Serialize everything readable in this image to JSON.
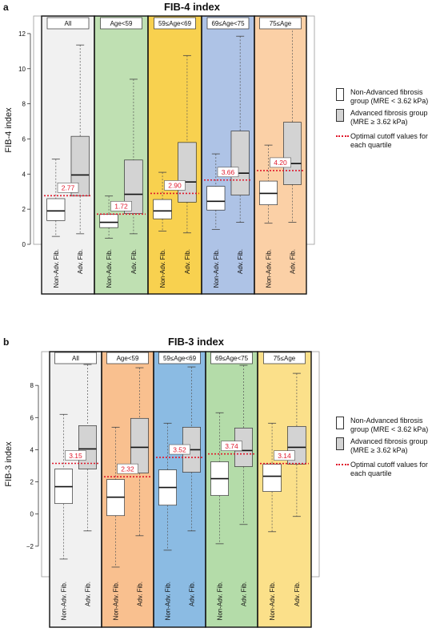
{
  "chart_data": [
    {
      "panel_label": "a",
      "type": "box",
      "title": "FIB-4 index",
      "ylabel": "FIB-4 index",
      "ylim": [
        0,
        13
      ],
      "yticks": [
        "0",
        "2",
        "4",
        "6",
        "8",
        "10",
        "12"
      ],
      "ytick_values": [
        0,
        2,
        4,
        6,
        8,
        10,
        12
      ],
      "box_labels": [
        "Non-Adv. Fib.",
        "Adv. Fib."
      ],
      "groups": [
        {
          "label": "All",
          "color": "#f1f1f1",
          "cutoff": 2.77,
          "cutoff_label": "2.77",
          "boxes": [
            {
              "min": 0.45,
              "q1": 1.35,
              "median": 1.9,
              "q3": 2.6,
              "max": 4.85
            },
            {
              "min": 0.6,
              "q1": 2.75,
              "median": 3.95,
              "q3": 6.15,
              "max": 11.35
            }
          ]
        },
        {
          "label": "Age<59",
          "color": "#bfe0b2",
          "cutoff": 1.72,
          "cutoff_label": "1.72",
          "boxes": [
            {
              "min": 0.35,
              "q1": 0.95,
              "median": 1.25,
              "q3": 1.7,
              "max": 2.75
            },
            {
              "min": 0.6,
              "q1": 1.75,
              "median": 2.85,
              "q3": 4.8,
              "max": 9.4
            }
          ]
        },
        {
          "label": "59≤Age<69",
          "color": "#f8d14f",
          "cutoff": 2.9,
          "cutoff_label": "2.90",
          "boxes": [
            {
              "min": 0.75,
              "q1": 1.45,
              "median": 1.9,
              "q3": 2.55,
              "max": 4.1
            },
            {
              "min": 0.65,
              "q1": 2.4,
              "median": 3.55,
              "q3": 5.8,
              "max": 10.75
            }
          ]
        },
        {
          "label": "69≤Age<75",
          "color": "#aec3e6",
          "cutoff": 3.66,
          "cutoff_label": "3.66",
          "boxes": [
            {
              "min": 0.85,
              "q1": 1.95,
              "median": 2.45,
              "q3": 3.3,
              "max": 5.15
            },
            {
              "min": 1.25,
              "q1": 2.8,
              "median": 4.05,
              "q3": 6.45,
              "max": 11.85
            }
          ]
        },
        {
          "label": "75≤Age",
          "color": "#fbd0a6",
          "cutoff": 4.2,
          "cutoff_label": "4.20",
          "boxes": [
            {
              "min": 1.2,
              "q1": 2.25,
              "median": 2.9,
              "q3": 3.6,
              "max": 5.65
            },
            {
              "min": 1.25,
              "q1": 3.4,
              "median": 4.6,
              "q3": 6.95,
              "max": 12.35
            }
          ]
        }
      ]
    },
    {
      "panel_label": "b",
      "type": "box",
      "title": "FIB-3 index",
      "ylabel": "FIB-3 index",
      "ylim": [
        -3.9,
        10.1
      ],
      "yticks": [
        "−2",
        "0",
        "2",
        "4",
        "6",
        "8"
      ],
      "ytick_values": [
        -2,
        0,
        2,
        4,
        6,
        8
      ],
      "box_labels": [
        "Non-Adv. Fib.",
        "Adv. Fib."
      ],
      "groups": [
        {
          "label": "All",
          "color": "#f1f1f1",
          "cutoff": 3.15,
          "cutoff_label": "3.15",
          "boxes": [
            {
              "min": -2.8,
              "q1": 0.65,
              "median": 1.7,
              "q3": 2.8,
              "max": 6.2
            },
            {
              "min": -1.05,
              "q1": 2.8,
              "median": 4.05,
              "q3": 5.5,
              "max": 9.3
            }
          ]
        },
        {
          "label": "Age<59",
          "color": "#f9c08f",
          "cutoff": 2.32,
          "cutoff_label": "2.32",
          "boxes": [
            {
              "min": -3.3,
              "q1": -0.1,
              "median": 1.05,
              "q3": 2.15,
              "max": 5.4
            },
            {
              "min": -1.35,
              "q1": 2.55,
              "median": 4.15,
              "q3": 5.95,
              "max": 9.1
            }
          ]
        },
        {
          "label": "59≤Age<69",
          "color": "#8bbbe3",
          "cutoff": 3.52,
          "cutoff_label": "3.52",
          "boxes": [
            {
              "min": -2.25,
              "q1": 0.55,
              "median": 1.65,
              "q3": 2.75,
              "max": 5.65
            },
            {
              "min": -1.05,
              "q1": 2.6,
              "median": 4.0,
              "q3": 5.4,
              "max": 9.15
            }
          ]
        },
        {
          "label": "69≤Age<75",
          "color": "#b4dca9",
          "cutoff": 3.74,
          "cutoff_label": "3.74",
          "boxes": [
            {
              "min": -1.85,
              "q1": 1.15,
              "median": 2.2,
              "q3": 3.25,
              "max": 6.3
            },
            {
              "min": -0.65,
              "q1": 2.95,
              "median": 3.95,
              "q3": 5.35,
              "max": 9.25
            }
          ]
        },
        {
          "label": "75≤Age",
          "color": "#fbe08a",
          "cutoff": 3.14,
          "cutoff_label": "3.14",
          "boxes": [
            {
              "min": -1.1,
              "q1": 1.4,
              "median": 2.35,
              "q3": 3.1,
              "max": 5.65
            },
            {
              "min": -0.15,
              "q1": 3.1,
              "median": 4.15,
              "q3": 5.45,
              "max": 8.75
            }
          ]
        }
      ]
    }
  ],
  "legend": {
    "items": [
      {
        "kind": "white-box",
        "text": "Non-Advanced fibrosis group (MRE < 3.62 kPa)"
      },
      {
        "kind": "grey-box",
        "text": "Advanced fibrosis group (MRE ≥ 3.62 kPa)"
      },
      {
        "kind": "red-dotted-line",
        "text": "Optimal cutoff values for each quartile"
      }
    ]
  },
  "colors": {
    "cutoff_line": "#e0192c",
    "adv_box": "#d3d3d3",
    "non_adv_box": "#ffffff"
  }
}
